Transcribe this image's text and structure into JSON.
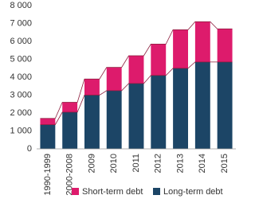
{
  "chart_data": {
    "type": "stacked-bar",
    "categories": [
      "1990-1999",
      "2000-2008",
      "2009",
      "2010",
      "2011",
      "2012",
      "2013",
      "2014",
      "2015"
    ],
    "series": [
      {
        "name": "Long-term debt",
        "color": "#1c4566",
        "values": [
          1350,
          2050,
          3000,
          3250,
          3650,
          4100,
          4500,
          4850,
          4850
        ]
      },
      {
        "name": "Short-term debt",
        "color": "#dd1b6c",
        "values": [
          350,
          550,
          900,
          1300,
          1550,
          1750,
          2150,
          2250,
          1850
        ]
      }
    ],
    "ylim": [
      0,
      8000
    ],
    "yticks": [
      0,
      {
        "value": 1000,
        "label": "1 000"
      },
      {
        "value": 2000,
        "label": "2 000"
      },
      {
        "value": 3000,
        "label": "3 000"
      },
      {
        "value": 4000,
        "label": "4 000"
      },
      {
        "value": 5000,
        "label": "5 000"
      },
      {
        "value": 6000,
        "label": "6 000"
      },
      {
        "value": 7000,
        "label": "7 000"
      },
      {
        "value": 8000,
        "label": "8 000"
      }
    ],
    "connector_color": "#8c1c3c",
    "grid": false
  }
}
